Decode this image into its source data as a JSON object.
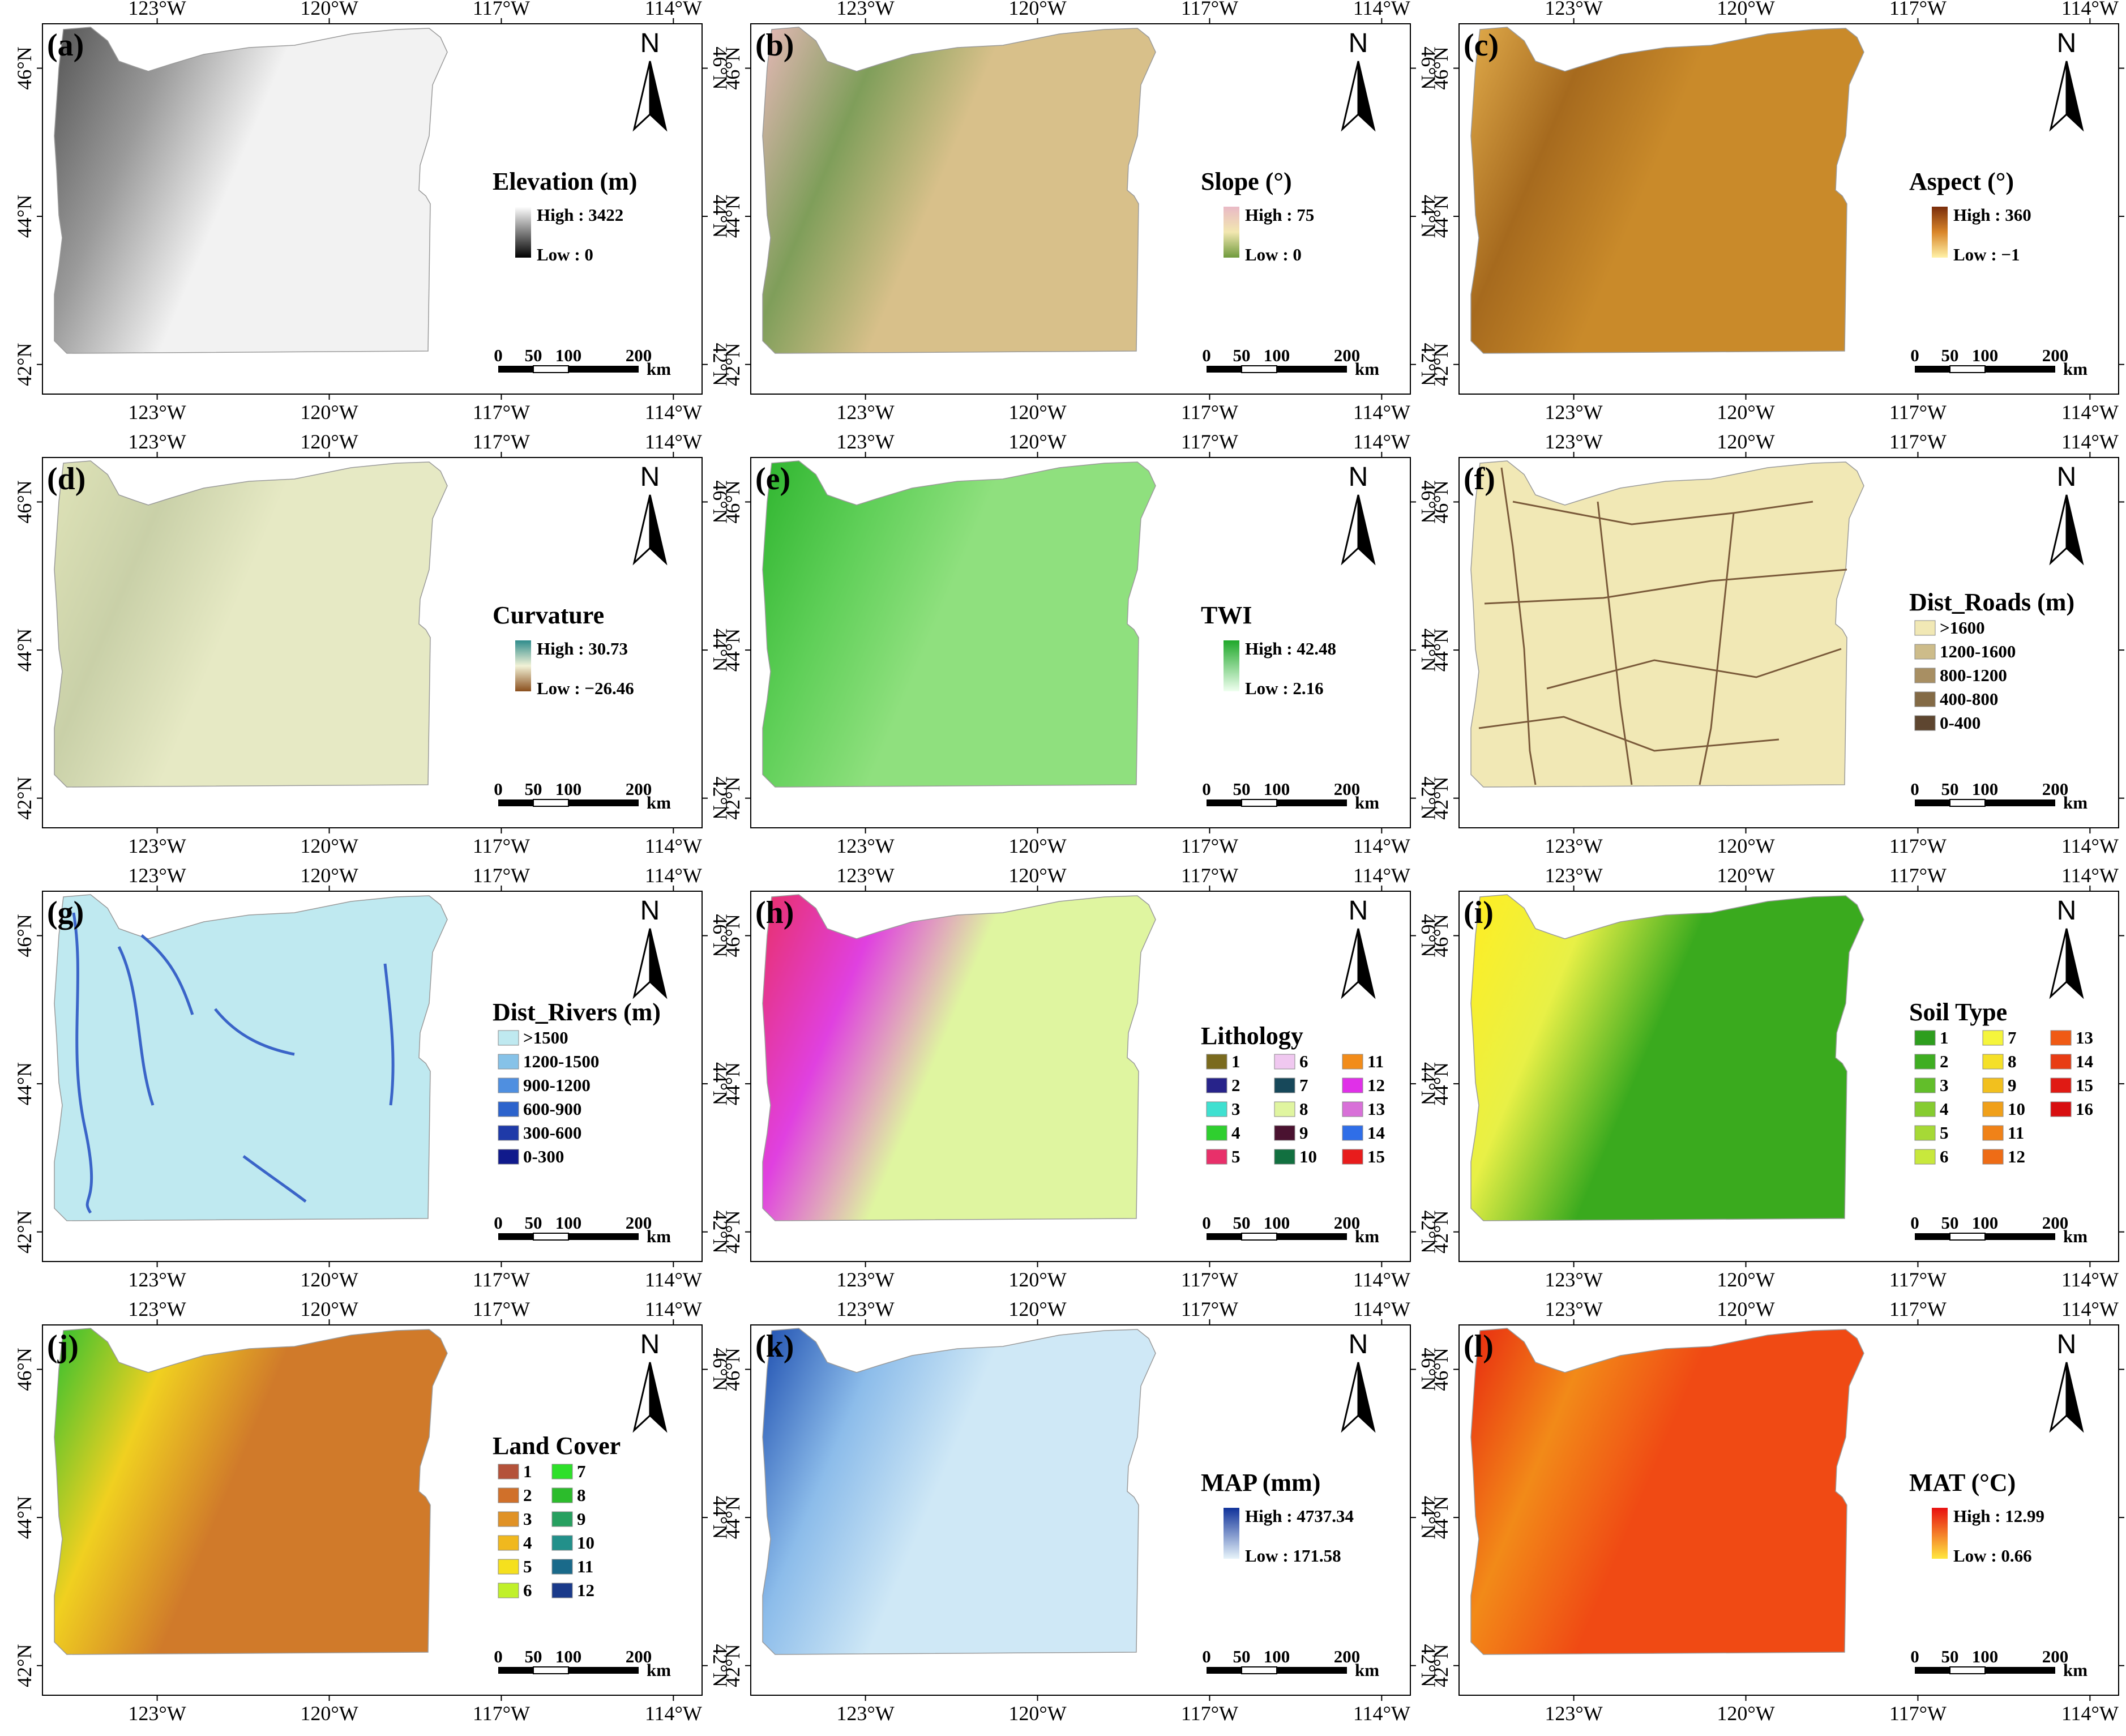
{
  "axes": {
    "lon_ticks": [
      "123°W",
      "120°W",
      "117°W",
      "114°W"
    ],
    "lat_ticks": [
      "46°N",
      "44°N",
      "42°N"
    ],
    "lon_range": [
      -125.0,
      -113.5
    ],
    "lat_range": [
      41.6,
      46.6
    ]
  },
  "north_label": "N",
  "scale_bar": {
    "ticks": [
      "0",
      "50",
      "100",
      "200"
    ],
    "unit": "km"
  },
  "panels": [
    {
      "letter": "(a)",
      "title": "Elevation (m)",
      "legend_type": "ramp",
      "high": "High : 3422",
      "low": "Low : 0",
      "fill": [
        "#f2f2f2",
        "#9a9a9a",
        "#555555"
      ],
      "ramp": [
        "#ffffff",
        "#000000"
      ]
    },
    {
      "letter": "(b)",
      "title": "Slope (°)",
      "legend_type": "ramp",
      "high": "High : 75",
      "low": "Low : 0",
      "fill": [
        "#d8c08a",
        "#7f9e5a",
        "#e6b8b8"
      ],
      "ramp": [
        "#e9b9c6",
        "#f2e7b0",
        "#6f9a3c"
      ]
    },
    {
      "letter": "(c)",
      "title": "Aspect (°)",
      "legend_type": "ramp",
      "high": "High : 360",
      "low": "Low : −1",
      "fill": [
        "#c98a2a",
        "#a66a1e",
        "#e0aa4a"
      ],
      "ramp": [
        "#7a2d0c",
        "#d9862a",
        "#fff2a8"
      ]
    },
    {
      "letter": "(d)",
      "title": "Curvature",
      "legend_type": "ramp",
      "high": "High : 30.73",
      "low": "Low : −26.46",
      "fill": [
        "#e6e9c4",
        "#c9d0a8",
        "#dfe3b8"
      ],
      "ramp": [
        "#2f8c8c",
        "#f2f2d6",
        "#8a4f1e"
      ]
    },
    {
      "letter": "(e)",
      "title": "TWI",
      "legend_type": "ramp",
      "high": "High : 42.48",
      "low": "Low : 2.16",
      "fill": [
        "#8fe07e",
        "#5fcf58",
        "#2fb52f"
      ],
      "ramp": [
        "#1fa82a",
        "#f0fff0"
      ]
    },
    {
      "letter": "(f)",
      "title": "Dist_Roads (m)",
      "legend_type": "classes",
      "columns": 1,
      "fill": [
        "#f1e8b5",
        "#f1e8b5",
        "#f1e8b5"
      ],
      "classes": [
        {
          "label": ">1600",
          "color": "#f1e8b5"
        },
        {
          "label": "1200-1600",
          "color": "#cdbc8a"
        },
        {
          "label": "800-1200",
          "color": "#a88f63"
        },
        {
          "label": "400-800",
          "color": "#836a45"
        },
        {
          "label": "0-400",
          "color": "#5e4630"
        }
      ]
    },
    {
      "letter": "(g)",
      "title": "Dist_Rivers (m)",
      "legend_type": "classes",
      "columns": 1,
      "fill": [
        "#bfe9f0",
        "#bfe9f0",
        "#bfe9f0"
      ],
      "classes": [
        {
          "label": ">1500",
          "color": "#bfe9f0"
        },
        {
          "label": "1200-1500",
          "color": "#86c2e8"
        },
        {
          "label": "900-1200",
          "color": "#4f8fe0"
        },
        {
          "label": "600-900",
          "color": "#2c63cc"
        },
        {
          "label": "300-600",
          "color": "#1f3aa8"
        },
        {
          "label": "0-300",
          "color": "#101a8c"
        }
      ]
    },
    {
      "letter": "(h)",
      "title": "Lithology",
      "legend_type": "classes",
      "columns": 3,
      "fill": [
        "#dff5a0",
        "#e040e0",
        "#e8306a"
      ],
      "classes": [
        {
          "label": "1",
          "color": "#7a6a1e"
        },
        {
          "label": "2",
          "color": "#27238a"
        },
        {
          "label": "3",
          "color": "#3fe0d0"
        },
        {
          "label": "4",
          "color": "#2fcf2f"
        },
        {
          "label": "5",
          "color": "#e8306a"
        },
        {
          "label": "6",
          "color": "#f0c8f0"
        },
        {
          "label": "7",
          "color": "#17485a"
        },
        {
          "label": "8",
          "color": "#e0f5a0"
        },
        {
          "label": "9",
          "color": "#4a1230"
        },
        {
          "label": "10",
          "color": "#127040"
        },
        {
          "label": "11",
          "color": "#f28c1a"
        },
        {
          "label": "12",
          "color": "#e030e8"
        },
        {
          "label": "13",
          "color": "#d870d8"
        },
        {
          "label": "14",
          "color": "#2f6ee8"
        },
        {
          "label": "15",
          "color": "#e81c1c"
        }
      ]
    },
    {
      "letter": "(i)",
      "title": "Soil Type",
      "legend_type": "classes",
      "columns": 3,
      "fill": [
        "#3aaa1e",
        "#e8f046",
        "#ffee22"
      ],
      "classes": [
        {
          "label": "1",
          "color": "#2e9e1e"
        },
        {
          "label": "2",
          "color": "#3fae22"
        },
        {
          "label": "3",
          "color": "#62be2a"
        },
        {
          "label": "4",
          "color": "#86cc30"
        },
        {
          "label": "5",
          "color": "#a6d936"
        },
        {
          "label": "6",
          "color": "#c8e83c"
        },
        {
          "label": "7",
          "color": "#f5f53c"
        },
        {
          "label": "8",
          "color": "#f5e028"
        },
        {
          "label": "9",
          "color": "#f2c01e"
        },
        {
          "label": "10",
          "color": "#f0a01a"
        },
        {
          "label": "11",
          "color": "#f08218"
        },
        {
          "label": "12",
          "color": "#ee6c16"
        },
        {
          "label": "13",
          "color": "#f05a14"
        },
        {
          "label": "14",
          "color": "#e83c14"
        },
        {
          "label": "15",
          "color": "#e01a14"
        },
        {
          "label": "16",
          "color": "#d80e10"
        }
      ]
    },
    {
      "letter": "(j)",
      "title": "Land Cover",
      "legend_type": "classes",
      "columns": 2,
      "fill": [
        "#d07a2a",
        "#f0d020",
        "#30c030"
      ],
      "classes": [
        {
          "label": "1",
          "color": "#b4523a"
        },
        {
          "label": "2",
          "color": "#d0702a"
        },
        {
          "label": "3",
          "color": "#e09226"
        },
        {
          "label": "4",
          "color": "#f0b81e"
        },
        {
          "label": "5",
          "color": "#f5e01e"
        },
        {
          "label": "6",
          "color": "#c0f02a"
        },
        {
          "label": "7",
          "color": "#2ee02a"
        },
        {
          "label": "8",
          "color": "#2cbc2c"
        },
        {
          "label": "9",
          "color": "#27a060"
        },
        {
          "label": "10",
          "color": "#22908a"
        },
        {
          "label": "11",
          "color": "#1a6a8a"
        },
        {
          "label": "12",
          "color": "#1a3a8a"
        }
      ]
    },
    {
      "letter": "(k)",
      "title": "MAP (mm)",
      "legend_type": "ramp",
      "high": "High : 4737.34",
      "low": "Low : 171.58",
      "fill": [
        "#cfe8f6",
        "#8cbcea",
        "#1e4fb0"
      ],
      "ramp": [
        "#10329a",
        "#e8f4fa"
      ]
    },
    {
      "letter": "(l)",
      "title": "MAT (°C)",
      "legend_type": "ramp",
      "high": "High : 12.99",
      "low": "Low : 0.66",
      "fill": [
        "#f04a14",
        "#f28a18",
        "#e82a10"
      ],
      "ramp": [
        "#e81010",
        "#ffe840"
      ]
    }
  ]
}
